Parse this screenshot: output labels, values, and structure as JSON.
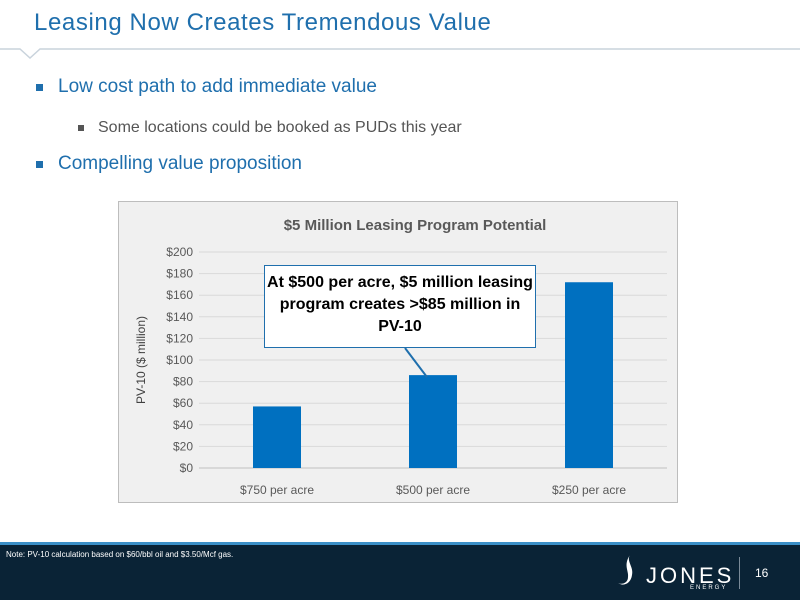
{
  "slide": {
    "title": "Leasing Now Creates Tremendous Value",
    "bullets": [
      "Low cost path to add immediate value",
      "Some locations could be booked as PUDs this year",
      "Compelling value proposition"
    ],
    "callout": "At $500 per acre, $5 million leasing program creates >$85 million in PV-10",
    "footnote": "Note: PV-10 calculation based on $60/bbl oil and $3.50/Mcf gas.",
    "page_number": "16"
  },
  "logo": {
    "name": "JONES",
    "sub": "ENERGY"
  },
  "colors": {
    "accent": "#1f6fad",
    "bar": "#0070c0",
    "footer": "#0a2336"
  },
  "chart_data": {
    "type": "bar",
    "title": "$5 Million Leasing Program Potential",
    "ylabel": "PV-10 ($ million)",
    "xlabel": "",
    "categories": [
      "$750 per acre",
      "$500 per acre",
      "$250 per acre"
    ],
    "values": [
      57,
      86,
      172
    ],
    "ylim": [
      0,
      200
    ],
    "yticks": [
      0,
      20,
      40,
      60,
      80,
      100,
      120,
      140,
      160,
      180,
      200
    ],
    "ytick_labels": [
      "$0",
      "$20",
      "$40",
      "$60",
      "$80",
      "$100",
      "$120",
      "$140",
      "$160",
      "$180",
      "$200"
    ],
    "grid": true,
    "legend": "none"
  }
}
